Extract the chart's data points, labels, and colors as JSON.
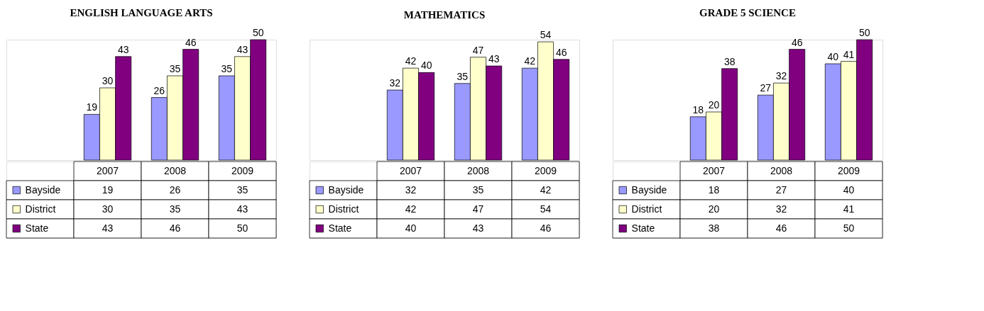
{
  "chart_data": [
    {
      "type": "bar",
      "title": "ENGLISH LANGUAGE ARTS",
      "categories": [
        "2007",
        "2008",
        "2009"
      ],
      "data_labels": true,
      "legend": "bottom",
      "annotations": [
        "19",
        "26",
        "35",
        "30",
        "35",
        "43",
        "43",
        "46",
        "50"
      ],
      "series": [
        {
          "name": "Bayside",
          "color": "#9999ff",
          "values": [
            19,
            26,
            35
          ]
        },
        {
          "name": "District",
          "color": "#ffffcc",
          "values": [
            30,
            35,
            43
          ]
        },
        {
          "name": "State",
          "color": "#800080",
          "values": [
            43,
            46,
            50
          ]
        }
      ]
    },
    {
      "type": "bar",
      "title": "MATHEMATICS",
      "categories": [
        "2007",
        "2008",
        "2009"
      ],
      "data_labels": true,
      "legend": "bottom",
      "annotations": [
        "32",
        "35",
        "42",
        "42",
        "47",
        "54",
        "40",
        "43",
        "46"
      ],
      "series": [
        {
          "name": "Bayside",
          "color": "#9999ff",
          "values": [
            32,
            35,
            42
          ]
        },
        {
          "name": "District",
          "color": "#ffffcc",
          "values": [
            42,
            47,
            54
          ]
        },
        {
          "name": "State",
          "color": "#800080",
          "values": [
            40,
            43,
            46
          ]
        }
      ]
    },
    {
      "type": "bar",
      "title": "GRADE 5 SCIENCE",
      "categories": [
        "2007",
        "2008",
        "2009"
      ],
      "data_labels": true,
      "legend": "bottom",
      "annotations": [
        "18",
        "27",
        "40",
        "20",
        "32",
        "41",
        "38",
        "46",
        "50"
      ],
      "series": [
        {
          "name": "Bayside",
          "color": "#9999ff",
          "values": [
            18,
            27,
            40
          ]
        },
        {
          "name": "District",
          "color": "#ffffcc",
          "values": [
            20,
            32,
            41
          ]
        },
        {
          "name": "State",
          "color": "#800080",
          "values": [
            38,
            46,
            50
          ]
        }
      ]
    }
  ]
}
